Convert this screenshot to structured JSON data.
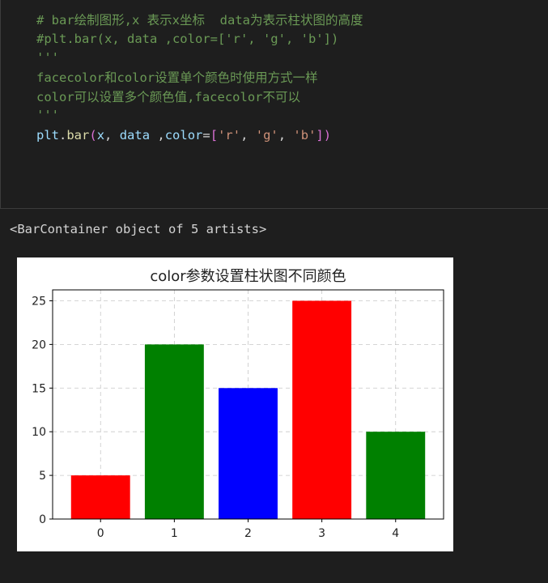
{
  "code": {
    "comment_1": "# bar绘制图形,x 表示x坐标  data为表示柱状图的高度",
    "comment_2": "#plt.bar(x, data ,color=['r', 'g', 'b'])",
    "docstring_open": "'''",
    "doc_line_1": "facecolor和color设置单个颜色时使用方式一样",
    "doc_line_2": "color可以设置多个颜色值,facecolor不可以",
    "docstring_close": "'''",
    "call": {
      "obj": "plt",
      "dot": ".",
      "fn": "bar",
      "paren_open": "(",
      "arg1": "x",
      "sep1": ", ",
      "arg2": "data",
      "sep2": " ,",
      "kw": "color",
      "eq": "=",
      "brk_open": "[",
      "s1": "'r'",
      "c1": ", ",
      "s2": "'g'",
      "c2": ", ",
      "s3": "'b'",
      "brk_close": "]",
      "paren_close": ")"
    }
  },
  "output": {
    "repr": "<BarContainer object of 5 artists>"
  },
  "chart_data": {
    "type": "bar",
    "title": "color参数设置柱状图不同颜色",
    "categories": [
      "0",
      "1",
      "2",
      "3",
      "4"
    ],
    "values": [
      5,
      20,
      15,
      25,
      10
    ],
    "bar_colors": [
      "#ff0000",
      "#008000",
      "#0000ff",
      "#ff0000",
      "#008000"
    ],
    "ylim": [
      0,
      26.25
    ],
    "yticks": [
      "0",
      "5",
      "10",
      "15",
      "20",
      "25"
    ],
    "grid": true,
    "xlabel": "",
    "ylabel": ""
  }
}
